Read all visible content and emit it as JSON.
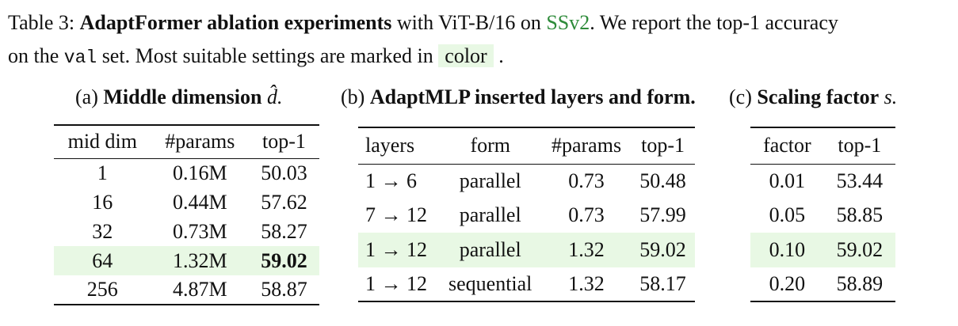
{
  "caption": {
    "label": "Table 3:",
    "bold": "AdaptFormer ablation experiments",
    "text1": "with ViT-B/16 on",
    "link": "SSv2",
    "text2": ". We report the top-1 accuracy",
    "text3": "on the",
    "code": "val",
    "text4": "set. Most suitable settings are marked in",
    "highlight": "color",
    "end": "."
  },
  "tables": [
    {
      "label": "(a)",
      "title": "Middle dimension",
      "symbol": "d̂.",
      "header": [
        "mid dim",
        "#params",
        "top-1"
      ],
      "rows": [
        [
          "1",
          "0.16M",
          "50.03"
        ],
        [
          "16",
          "0.44M",
          "57.62"
        ],
        [
          "32",
          "0.73M",
          "58.27"
        ],
        [
          "64",
          "1.32M",
          "59.02"
        ],
        [
          "256",
          "4.87M",
          "58.87"
        ]
      ],
      "highlight_row": 3,
      "bold_best": true
    },
    {
      "label": "(b)",
      "title": "AdaptMLP inserted layers and form.",
      "symbol": "",
      "header": [
        "layers",
        "form",
        "#params",
        "top-1"
      ],
      "rows": [
        [
          "1 → 6",
          "parallel",
          "0.73",
          "50.48"
        ],
        [
          "7 → 12",
          "parallel",
          "0.73",
          "57.99"
        ],
        [
          "1 → 12",
          "parallel",
          "1.32",
          "59.02"
        ],
        [
          "1 → 12",
          "sequential",
          "1.32",
          "58.17"
        ]
      ],
      "highlight_row": 2,
      "bold_best": false
    },
    {
      "label": "(c)",
      "title": "Scaling factor",
      "symbol": "s.",
      "header": [
        "factor",
        "top-1"
      ],
      "rows": [
        [
          "0.01",
          "53.44"
        ],
        [
          "0.05",
          "58.85"
        ],
        [
          "0.10",
          "59.02"
        ],
        [
          "0.20",
          "58.89"
        ]
      ],
      "highlight_row": 2,
      "bold_best": false
    }
  ]
}
